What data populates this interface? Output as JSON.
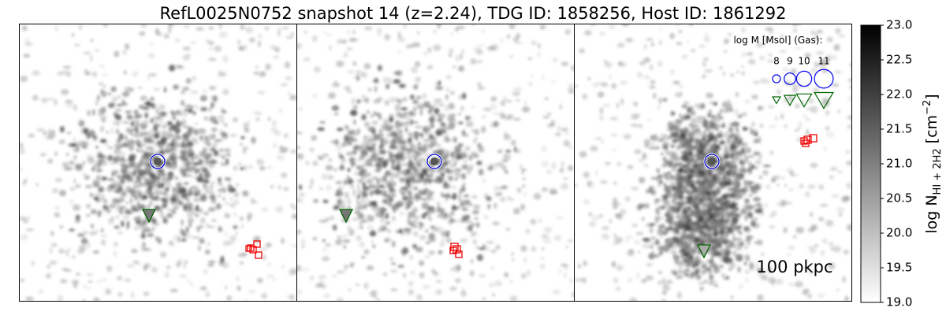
{
  "title": "RefL0025N0752 snapshot 14 (z=2.24), TDG ID: 1858256, Host ID: 1861292",
  "colorbar": {
    "label": {
      "main": "log N",
      "sub": "HI + 2H2",
      "unit": " [cm",
      "sup": "−2",
      "close": "]"
    },
    "lim": [
      19,
      23
    ],
    "ticks": [
      {
        "value": 19,
        "label": "19.0"
      },
      {
        "value": 19.5,
        "label": "19.5"
      },
      {
        "value": 20,
        "label": "20.0"
      },
      {
        "value": 20.5,
        "label": "20.5"
      },
      {
        "value": 21,
        "label": "21.0"
      },
      {
        "value": 21.5,
        "label": "21.5"
      },
      {
        "value": 22,
        "label": "22.0"
      },
      {
        "value": 22.5,
        "label": "22.5"
      },
      {
        "value": 23,
        "label": "23.0"
      }
    ]
  },
  "legend": {
    "title": "log M [Msol] (Gas):",
    "masses": [
      8,
      9,
      10,
      11
    ]
  },
  "scale_label": "100 pkpc"
}
